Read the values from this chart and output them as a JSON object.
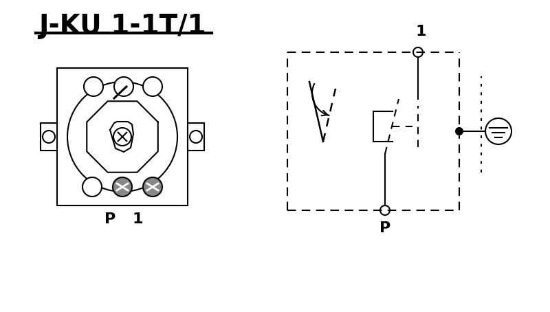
{
  "title": "J-KU 1-1T/1",
  "bg_color": "#ffffff",
  "line_color": "#000000",
  "gray_color": "#888888",
  "title_fontsize": 28,
  "label_fontsize": 16,
  "fig_width": 8.0,
  "fig_height": 4.54
}
